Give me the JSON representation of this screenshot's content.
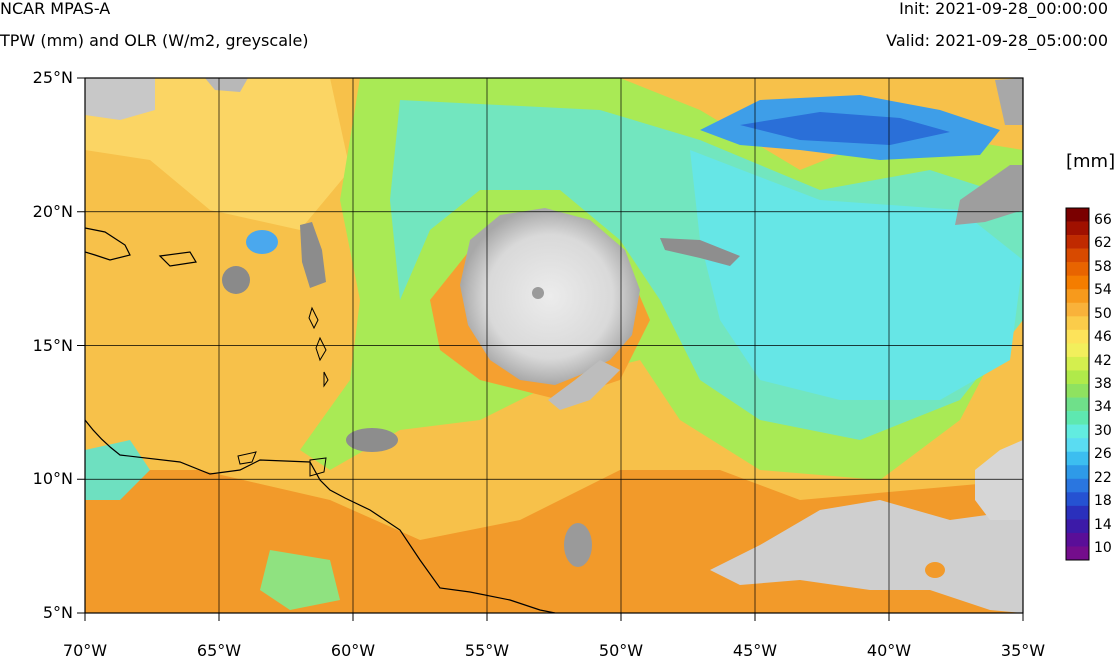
{
  "header": {
    "model": "NCAR MPAS-A",
    "fields": "TPW (mm) and OLR (W/m2, greyscale)",
    "init": "Init: 2021-09-28_00:00:00",
    "valid": "Valid: 2021-09-28_05:00:00"
  },
  "map": {
    "lon_range": [
      -70,
      -35
    ],
    "lat_range": [
      5,
      25
    ],
    "lon_ticks": [
      -70,
      -65,
      -60,
      -55,
      -50,
      -45,
      -40,
      -35
    ],
    "lat_ticks": [
      5,
      10,
      15,
      20,
      25
    ],
    "lon_labels": [
      "70°W",
      "65°W",
      "60°W",
      "55°W",
      "50°W",
      "45°W",
      "40°W",
      "35°W"
    ],
    "lat_labels": [
      "5°N",
      "10°N",
      "15°N",
      "20°N",
      "25°N"
    ],
    "grid": true,
    "feature": "hurricane"
  },
  "colorbar": {
    "units": "[mm]",
    "labels": [
      "66",
      "62",
      "58",
      "54",
      "50",
      "46",
      "42",
      "38",
      "34",
      "30",
      "26",
      "22",
      "18",
      "14",
      "10"
    ],
    "colors": [
      "#7a0000",
      "#a01000",
      "#c02a00",
      "#d84a00",
      "#e86400",
      "#f47d00",
      "#f79a1c",
      "#f9b23a",
      "#fbcc4a",
      "#fde35a",
      "#f2ef5c",
      "#d4ef4e",
      "#b0ea4a",
      "#8fe260",
      "#6fe08a",
      "#5ee8b0",
      "#62ece0",
      "#5adcf2",
      "#3cbef0",
      "#2e9ae8",
      "#2a76e0",
      "#2552d2",
      "#2a30bc",
      "#3c1aa8",
      "#5a0e98",
      "#740d8c"
    ]
  }
}
